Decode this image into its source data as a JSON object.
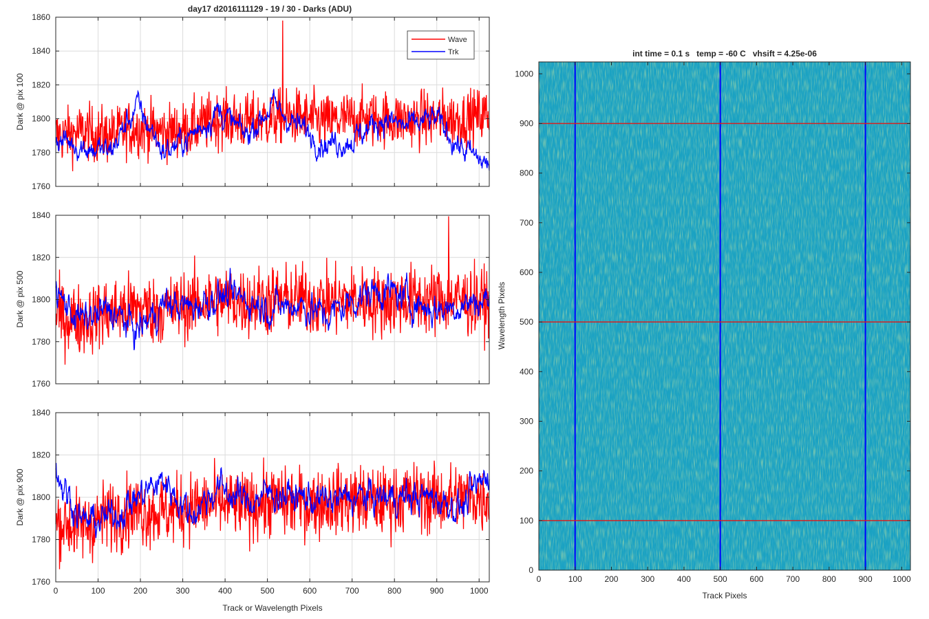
{
  "figure_title": "day17 d2016111129 - 19 / 30 - Darks (ADU)",
  "chart_data": [
    {
      "type": "line",
      "title": "day17 d2016111129 - 19 / 30 - Darks (ADU)",
      "xlabel": "",
      "ylabel": "Dark @ pix 100",
      "xlim": [
        0,
        1024
      ],
      "ylim": [
        1760,
        1860
      ],
      "xticks": [
        0,
        100,
        200,
        300,
        400,
        500,
        600,
        700,
        800,
        900,
        1000
      ],
      "yticks": [
        1760,
        1780,
        1800,
        1820,
        1840,
        1860
      ],
      "grid": true,
      "legend": "top-right",
      "series": [
        {
          "name": "Wave",
          "color": "#ff0000",
          "anchors_x": [
            0,
            64,
            128,
            192,
            256,
            320,
            384,
            448,
            512,
            576,
            640,
            704,
            768,
            832,
            896,
            960,
            1024
          ],
          "anchors_y": [
            1790,
            1792,
            1790,
            1795,
            1792,
            1794,
            1800,
            1798,
            1800,
            1801,
            1798,
            1800,
            1800,
            1799,
            1800,
            1800,
            1803
          ],
          "noise": 11,
          "peak": {
            "x": 536,
            "y": 1858
          }
        },
        {
          "name": "Trk",
          "color": "#0000ff",
          "anchors_x": [
            0,
            64,
            128,
            192,
            256,
            320,
            384,
            448,
            512,
            576,
            640,
            704,
            768,
            832,
            896,
            960,
            1024
          ],
          "anchors_y": [
            1788,
            1784,
            1780,
            1808,
            1780,
            1790,
            1805,
            1790,
            1808,
            1795,
            1785,
            1788,
            1800,
            1795,
            1800,
            1782,
            1772
          ],
          "noise": 5
        }
      ]
    },
    {
      "type": "line",
      "title": "",
      "xlabel": "",
      "ylabel": "Dark @ pix 500",
      "xlim": [
        0,
        1024
      ],
      "ylim": [
        1760,
        1840
      ],
      "xticks": [
        0,
        100,
        200,
        300,
        400,
        500,
        600,
        700,
        800,
        900,
        1000
      ],
      "yticks": [
        1760,
        1780,
        1800,
        1820,
        1840
      ],
      "grid": true,
      "series": [
        {
          "name": "Wave",
          "color": "#ff0000",
          "anchors_x": [
            0,
            64,
            128,
            192,
            256,
            320,
            384,
            448,
            512,
            576,
            640,
            704,
            768,
            832,
            896,
            960,
            1024
          ],
          "anchors_y": [
            1792,
            1790,
            1794,
            1796,
            1795,
            1798,
            1800,
            1799,
            1800,
            1800,
            1799,
            1800,
            1799,
            1800,
            1800,
            1800,
            1798
          ],
          "noise": 11,
          "peak": {
            "x": 928,
            "y": 1840
          }
        },
        {
          "name": "Trk",
          "color": "#0000ff",
          "anchors_x": [
            0,
            64,
            128,
            192,
            256,
            320,
            384,
            448,
            512,
            576,
            640,
            704,
            768,
            832,
            896,
            960,
            1024
          ],
          "anchors_y": [
            1802,
            1790,
            1795,
            1785,
            1798,
            1796,
            1802,
            1800,
            1796,
            1798,
            1792,
            1800,
            1805,
            1800,
            1795,
            1798,
            1800
          ],
          "noise": 5
        }
      ]
    },
    {
      "type": "line",
      "title": "",
      "xlabel": "Track or Wavelength Pixels",
      "ylabel": "Dark @ pix 900",
      "xlim": [
        0,
        1024
      ],
      "ylim": [
        1760,
        1840
      ],
      "xticks": [
        0,
        100,
        200,
        300,
        400,
        500,
        600,
        700,
        800,
        900,
        1000
      ],
      "yticks": [
        1760,
        1780,
        1800,
        1820,
        1840
      ],
      "grid": true,
      "series": [
        {
          "name": "Wave",
          "color": "#ff0000",
          "anchors_x": [
            0,
            64,
            128,
            192,
            256,
            320,
            384,
            448,
            512,
            576,
            640,
            704,
            768,
            832,
            896,
            960,
            1024
          ],
          "anchors_y": [
            1788,
            1786,
            1792,
            1794,
            1793,
            1795,
            1797,
            1796,
            1798,
            1797,
            1798,
            1799,
            1798,
            1800,
            1799,
            1800,
            1800
          ],
          "noise": 11
        },
        {
          "name": "Trk",
          "color": "#0000ff",
          "anchors_x": [
            0,
            64,
            128,
            192,
            256,
            320,
            384,
            448,
            512,
            576,
            640,
            704,
            768,
            832,
            896,
            960,
            1024
          ],
          "anchors_y": [
            1812,
            1788,
            1790,
            1800,
            1808,
            1792,
            1805,
            1798,
            1802,
            1800,
            1798,
            1800,
            1800,
            1800,
            1800,
            1795,
            1812
          ],
          "noise": 5
        }
      ]
    },
    {
      "type": "heatmap",
      "title": "int time = 0.1 s   temp = -60 C   vhsift = 4.25e-06",
      "xlabel": "Track Pixels",
      "ylabel": "Wavelength Pixels",
      "xlim": [
        0,
        1024
      ],
      "ylim": [
        0,
        1024
      ],
      "xticks": [
        0,
        100,
        200,
        300,
        400,
        500,
        600,
        700,
        800,
        900,
        1000
      ],
      "yticks": [
        0,
        100,
        200,
        300,
        400,
        500,
        600,
        700,
        800,
        900,
        1000
      ],
      "base_color": "#1aa2c2",
      "vertical_markers": {
        "at": [
          100,
          500,
          900
        ],
        "color": "#0000ff"
      },
      "horizontal_markers": {
        "at": [
          100,
          500,
          900
        ],
        "color": "#d62020"
      }
    }
  ]
}
